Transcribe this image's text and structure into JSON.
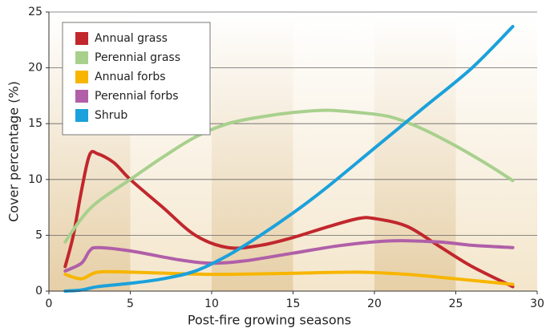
{
  "chart_data": {
    "type": "line",
    "xlabel": "Post-fire growing seasons",
    "ylabel": "Cover percentage (%)",
    "xlim": [
      0,
      30
    ],
    "ylim": [
      0,
      25
    ],
    "xticks": [
      0,
      5,
      10,
      15,
      20,
      25,
      30
    ],
    "yticks": [
      0,
      5,
      10,
      15,
      20,
      25
    ],
    "grid": true,
    "legend": "upper left",
    "series": [
      {
        "name": "Annual grass",
        "color": "#c1272d",
        "x": [
          1,
          1.5,
          2,
          2.5,
          3,
          4,
          5,
          7,
          9,
          11,
          13,
          15,
          17,
          19,
          20,
          22,
          24,
          26,
          28.5
        ],
        "values": [
          2.2,
          5,
          9,
          12.2,
          12.3,
          11.5,
          10,
          7.5,
          5,
          3.9,
          4.1,
          4.8,
          5.7,
          6.5,
          6.5,
          5.8,
          4,
          2.2,
          0.4
        ]
      },
      {
        "name": "Perennial grass",
        "color": "#a8d08d",
        "x": [
          1,
          2,
          3,
          5,
          7,
          9,
          11,
          13,
          15,
          17,
          19,
          21,
          23,
          25,
          27,
          28.5
        ],
        "values": [
          4.4,
          6.5,
          8,
          10,
          12,
          13.8,
          15,
          15.6,
          16,
          16.2,
          16,
          15.6,
          14.5,
          13,
          11.3,
          9.9
        ]
      },
      {
        "name": "Annual forbs",
        "color": "#f7b500",
        "x": [
          1,
          2,
          3,
          5,
          10,
          15,
          19,
          22,
          25,
          28.5
        ],
        "values": [
          1.5,
          1.1,
          1.7,
          1.7,
          1.5,
          1.6,
          1.7,
          1.5,
          1.1,
          0.6
        ]
      },
      {
        "name": "Perennial forbs",
        "color": "#b05fa8",
        "x": [
          1,
          2,
          2.5,
          3,
          5,
          8,
          10,
          12,
          15,
          18,
          21,
          24,
          26,
          28.5
        ],
        "values": [
          1.8,
          2.5,
          3.6,
          3.9,
          3.6,
          2.8,
          2.5,
          2.7,
          3.4,
          4.1,
          4.5,
          4.4,
          4.1,
          3.9
        ]
      },
      {
        "name": "Shrub",
        "color": "#1ba1db",
        "x": [
          1,
          2,
          3,
          5,
          7,
          9,
          11,
          13,
          15,
          17,
          20,
          23,
          26,
          28.5
        ],
        "values": [
          0,
          0.1,
          0.4,
          0.7,
          1.1,
          1.8,
          3.2,
          5,
          7,
          9.2,
          12.8,
          16.4,
          20,
          23.7
        ]
      }
    ]
  }
}
